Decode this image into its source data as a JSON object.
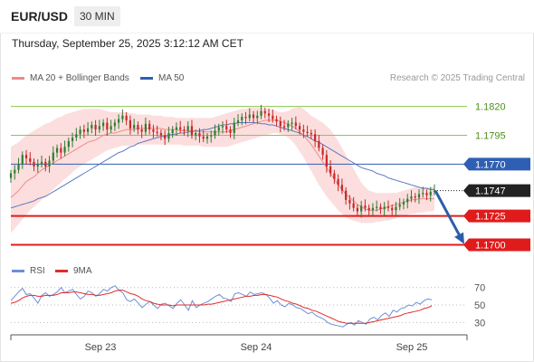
{
  "header": {
    "pair": "EUR/USD",
    "timeframe": "30 MIN",
    "datetime": "Thursday, September 25, 2025 3:12:12 AM CET"
  },
  "legend": {
    "ma20_label": "MA 20 + Bollinger Bands",
    "ma50_label": "MA 50",
    "credit": "Research © 2025 Trading Central",
    "rsi_label": "RSI",
    "rsi_ma_label": "9MA"
  },
  "colors": {
    "up": "#2e7d32",
    "down": "#c62828",
    "bollinger_fill": "#fbd8d8",
    "ma20": "#f08a8a",
    "ma50": "#5b79c2",
    "resistance": "#8dc64f",
    "pivot": "#2f5fb3",
    "support": "#e01b1b",
    "current": "#222222",
    "arrow": "#2a5ea8",
    "rsi": "#6c8fd8",
    "rsi_ma": "#e02b2b"
  },
  "chart_data": [
    {
      "type": "candlestick",
      "title": "EUR/USD 30 MIN",
      "ylim": [
        1.1691,
        1.1837
      ],
      "x_tick_labels": [
        "Sep 23",
        "Sep 24",
        "Sep 25"
      ],
      "levels": [
        {
          "value": 1.182,
          "label": "1.1820",
          "kind": "resistance"
        },
        {
          "value": 1.1795,
          "label": "1.1795",
          "kind": "resistance"
        },
        {
          "value": 1.177,
          "label": "1.1770",
          "kind": "pivot"
        },
        {
          "value": 1.1747,
          "label": "1.1747",
          "kind": "current"
        },
        {
          "value": 1.1725,
          "label": "1.1725",
          "kind": "support"
        },
        {
          "value": 1.17,
          "label": "1.1700",
          "kind": "support"
        }
      ],
      "close": [
        1.1762,
        1.1765,
        1.177,
        1.1778,
        1.1775,
        1.1772,
        1.1768,
        1.177,
        1.1772,
        1.1768,
        1.1773,
        1.178,
        1.1784,
        1.178,
        1.1785,
        1.179,
        1.1793,
        1.1796,
        1.18,
        1.1798,
        1.1801,
        1.1804,
        1.18,
        1.1803,
        1.1806,
        1.18,
        1.1803,
        1.1806,
        1.1809,
        1.1812,
        1.1808,
        1.1801,
        1.1804,
        1.18,
        1.1798,
        1.1805,
        1.18,
        1.1798,
        1.1797,
        1.1795,
        1.1792,
        1.1797,
        1.18,
        1.1802,
        1.18,
        1.1799,
        1.1803,
        1.1795,
        1.1797,
        1.1794,
        1.1792,
        1.1794,
        1.1795,
        1.1799,
        1.1802,
        1.1803,
        1.18,
        1.1797,
        1.1806,
        1.1808,
        1.1811,
        1.181,
        1.1813,
        1.181,
        1.1812,
        1.1816,
        1.1814,
        1.1812,
        1.1809,
        1.1807,
        1.1803,
        1.1802,
        1.1805,
        1.1806,
        1.1803,
        1.18,
        1.1798,
        1.1797,
        1.1796,
        1.179,
        1.1784,
        1.1778,
        1.1768,
        1.1762,
        1.1757,
        1.1752,
        1.1747,
        1.1739,
        1.1736,
        1.1732,
        1.1729,
        1.1734,
        1.1732,
        1.173,
        1.1732,
        1.1733,
        1.1731,
        1.1733,
        1.1732,
        1.173,
        1.1733,
        1.1735,
        1.1737,
        1.174,
        1.1742,
        1.1741,
        1.1744,
        1.1745,
        1.1743,
        1.1746,
        1.1747
      ],
      "ma20": [
        1.1741,
        1.1744,
        1.1747,
        1.1751,
        1.1755,
        1.1757,
        1.1759,
        1.1762,
        1.1765,
        1.1767,
        1.1769,
        1.1771,
        1.1773,
        1.1775,
        1.1777,
        1.1779,
        1.1781,
        1.1783,
        1.1785,
        1.1787,
        1.1789,
        1.179,
        1.1791,
        1.1793,
        1.1795,
        1.1796,
        1.1797,
        1.1797,
        1.1798,
        1.1799,
        1.18,
        1.18,
        1.18,
        1.1801,
        1.1801,
        1.1801,
        1.1801,
        1.1801,
        1.1801,
        1.1801,
        1.18,
        1.18,
        1.18,
        1.18,
        1.1799,
        1.1799,
        1.1799,
        1.1799,
        1.1799,
        1.1798,
        1.1798,
        1.1798,
        1.1798,
        1.1798,
        1.1798,
        1.1798,
        1.1798,
        1.1799,
        1.18,
        1.1801,
        1.1802,
        1.1803,
        1.1804,
        1.1805,
        1.1806,
        1.1807,
        1.1808,
        1.1808,
        1.1808,
        1.1808,
        1.1807,
        1.1806,
        1.1805,
        1.1803,
        1.1801,
        1.1798,
        1.1795,
        1.1791,
        1.1787,
        1.1782,
        1.1777,
        1.1772,
        1.1767,
        1.1762,
        1.1757,
        1.1752,
        1.1748,
        1.1744,
        1.1741,
        1.1738,
        1.1735,
        1.1733,
        1.1731,
        1.173,
        1.173,
        1.173,
        1.1731,
        1.1732,
        1.1733,
        1.1734,
        1.1735,
        1.1736,
        1.1737,
        1.1738,
        1.1739,
        1.1739,
        1.174,
        1.174,
        1.174,
        1.174,
        1.174
      ],
      "ma50": [
        1.1732,
        1.1733,
        1.1734,
        1.1735,
        1.1736,
        1.1737,
        1.1738,
        1.174,
        1.1741,
        1.1742,
        1.1744,
        1.1746,
        1.1748,
        1.175,
        1.1752,
        1.1754,
        1.1756,
        1.1758,
        1.176,
        1.1762,
        1.1764,
        1.1766,
        1.1768,
        1.177,
        1.1772,
        1.1774,
        1.1776,
        1.1778,
        1.178,
        1.1781,
        1.1783,
        1.1785,
        1.1786,
        1.1788,
        1.1789,
        1.179,
        1.1791,
        1.1792,
        1.1793,
        1.1794,
        1.1794,
        1.1795,
        1.1796,
        1.1796,
        1.1797,
        1.1797,
        1.1798,
        1.1798,
        1.1799,
        1.1799,
        1.18,
        1.18,
        1.1801,
        1.1802,
        1.1803,
        1.1804,
        1.1804,
        1.1805,
        1.1805,
        1.1806,
        1.1806,
        1.1806,
        1.1806,
        1.1806,
        1.1806,
        1.1805,
        1.1805,
        1.1804,
        1.1804,
        1.1803,
        1.1802,
        1.1801,
        1.18,
        1.1799,
        1.1798,
        1.1797,
        1.1795,
        1.1794,
        1.1792,
        1.179,
        1.1789,
        1.1787,
        1.1785,
        1.1783,
        1.1781,
        1.1779,
        1.1777,
        1.1775,
        1.1773,
        1.1771,
        1.1769,
        1.1767,
        1.1766,
        1.1765,
        1.1764,
        1.1762,
        1.1761,
        1.176,
        1.1758,
        1.1757,
        1.1756,
        1.1755,
        1.1754,
        1.1753,
        1.1752,
        1.1751,
        1.175,
        1.1749,
        1.1749,
        1.1748,
        1.1748
      ],
      "bollinger_upper": [
        1.1785,
        1.1787,
        1.1789,
        1.1792,
        1.1795,
        1.1797,
        1.1799,
        1.1801,
        1.1803,
        1.1805,
        1.1806,
        1.1808,
        1.181,
        1.1811,
        1.1813,
        1.1814,
        1.1815,
        1.1816,
        1.1817,
        1.1818,
        1.1818,
        1.1818,
        1.1818,
        1.1818,
        1.1817,
        1.1816,
        1.1815,
        1.1815,
        1.1815,
        1.1815,
        1.1815,
        1.1814,
        1.1814,
        1.1813,
        1.1813,
        1.1813,
        1.1813,
        1.1812,
        1.1812,
        1.1812,
        1.1811,
        1.1811,
        1.1811,
        1.181,
        1.181,
        1.181,
        1.181,
        1.181,
        1.181,
        1.181,
        1.181,
        1.181,
        1.181,
        1.1811,
        1.1812,
        1.1813,
        1.1814,
        1.1815,
        1.1816,
        1.1817,
        1.1818,
        1.1818,
        1.1819,
        1.1819,
        1.1819,
        1.1819,
        1.1818,
        1.1818,
        1.1817,
        1.1816,
        1.1815,
        1.1815,
        1.1816,
        1.1818,
        1.1819,
        1.182,
        1.1818,
        1.1815,
        1.1812,
        1.181,
        1.1808,
        1.1806,
        1.1803,
        1.18,
        1.1795,
        1.179,
        1.1784,
        1.1778,
        1.1772,
        1.1766,
        1.176,
        1.1754,
        1.175,
        1.1747,
        1.1746,
        1.1745,
        1.1745,
        1.1745,
        1.1745,
        1.1745,
        1.1745,
        1.1746,
        1.1747,
        1.1748,
        1.1749,
        1.175,
        1.175,
        1.175,
        1.175,
        1.175,
        1.175
      ],
      "bollinger_lower": [
        1.171,
        1.1714,
        1.1718,
        1.1722,
        1.1726,
        1.173,
        1.1733,
        1.1736,
        1.1739,
        1.1742,
        1.1745,
        1.1748,
        1.1751,
        1.1754,
        1.1757,
        1.176,
        1.1763,
        1.1766,
        1.1768,
        1.177,
        1.1772,
        1.1774,
        1.1776,
        1.1778,
        1.178,
        1.1782,
        1.1783,
        1.1784,
        1.1785,
        1.1786,
        1.1786,
        1.1786,
        1.1787,
        1.1787,
        1.1787,
        1.1787,
        1.1787,
        1.1787,
        1.1787,
        1.1787,
        1.1787,
        1.1787,
        1.1787,
        1.1787,
        1.1787,
        1.1786,
        1.1786,
        1.1786,
        1.1786,
        1.1786,
        1.1785,
        1.1785,
        1.1785,
        1.1785,
        1.1785,
        1.1785,
        1.1785,
        1.1786,
        1.1787,
        1.1788,
        1.1789,
        1.179,
        1.1791,
        1.1792,
        1.1793,
        1.1794,
        1.1795,
        1.1796,
        1.1797,
        1.1797,
        1.1796,
        1.1795,
        1.1793,
        1.179,
        1.1786,
        1.1781,
        1.1776,
        1.177,
        1.1764,
        1.1758,
        1.1752,
        1.1747,
        1.1742,
        1.1738,
        1.1734,
        1.173,
        1.1727,
        1.1724,
        1.1722,
        1.1721,
        1.172,
        1.1719,
        1.1719,
        1.1719,
        1.1719,
        1.172,
        1.172,
        1.1721,
        1.1721,
        1.1722,
        1.1723,
        1.1724,
        1.1725,
        1.1726,
        1.1727,
        1.1727,
        1.1728,
        1.1728,
        1.1729,
        1.1729,
        1.173
      ]
    },
    {
      "type": "line",
      "title": "RSI",
      "ylim": [
        20,
        78
      ],
      "y_ticks": [
        70,
        50,
        30
      ],
      "series": [
        {
          "name": "RSI",
          "values": [
            55,
            60,
            65,
            69,
            62,
            63,
            58,
            52,
            61,
            64,
            60,
            62,
            65,
            70,
            64,
            66,
            68,
            62,
            57,
            60,
            66,
            64,
            60,
            63,
            68,
            66,
            70,
            72,
            67,
            64,
            56,
            54,
            57,
            52,
            47,
            51,
            54,
            50,
            46,
            51,
            52,
            49,
            46,
            52,
            56,
            50,
            44,
            55,
            47,
            50,
            52,
            54,
            57,
            60,
            62,
            58,
            57,
            54,
            63,
            64,
            62,
            60,
            65,
            62,
            63,
            64,
            62,
            58,
            52,
            55,
            50,
            48,
            52,
            50,
            47,
            46,
            43,
            40,
            42,
            38,
            36,
            34,
            30,
            28,
            27,
            26,
            25,
            28,
            30,
            27,
            32,
            30,
            28,
            34,
            36,
            33,
            38,
            41,
            37,
            44,
            42,
            46,
            47,
            50,
            49,
            53,
            51,
            55,
            57,
            56
          ]
        },
        {
          "name": "9MA",
          "values": [
            52,
            53,
            55,
            58,
            60,
            61,
            61,
            60,
            60,
            61,
            61,
            61,
            62,
            64,
            64,
            64,
            65,
            65,
            64,
            63,
            62,
            62,
            61,
            61,
            62,
            63,
            64,
            66,
            67,
            67,
            65,
            63,
            62,
            60,
            57,
            55,
            54,
            52,
            51,
            50,
            50,
            50,
            49,
            50,
            50,
            50,
            50,
            50,
            50,
            50,
            50,
            51,
            51,
            52,
            53,
            54,
            55,
            56,
            57,
            58,
            59,
            60,
            60,
            61,
            61,
            62,
            62,
            61,
            60,
            59,
            57,
            55,
            54,
            52,
            51,
            49,
            47,
            46,
            44,
            43,
            41,
            39,
            37,
            35,
            33,
            31,
            30,
            29,
            29,
            29,
            29,
            29,
            29,
            30,
            31,
            32,
            33,
            34,
            35,
            36,
            37,
            38,
            40,
            41,
            42,
            43,
            44,
            46,
            47,
            49
          ]
        }
      ]
    }
  ]
}
